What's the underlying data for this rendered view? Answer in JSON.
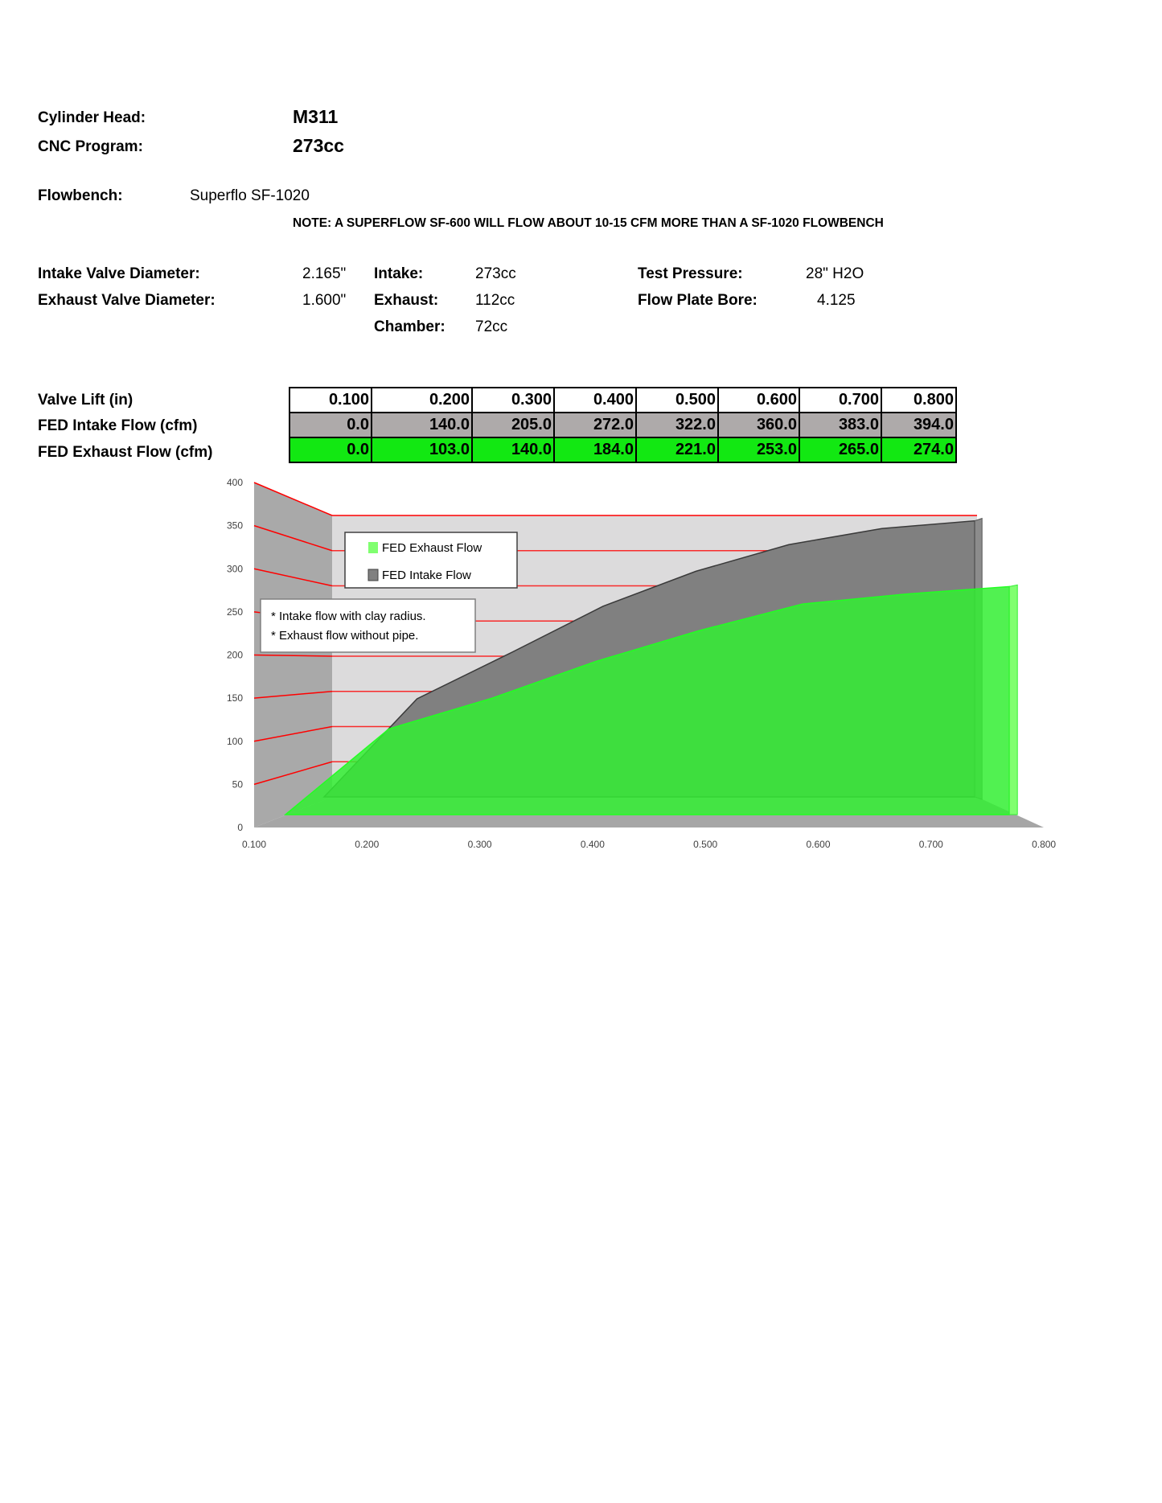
{
  "header": {
    "cylinder_head_label": "Cylinder Head:",
    "cylinder_head_value": "M311",
    "cnc_program_label": "CNC Program:",
    "cnc_program_value": "273cc",
    "flowbench_label": "Flowbench:",
    "flowbench_value": "Superflo SF-1020",
    "note": "NOTE: A SUPERFLOW SF-600 WILL FLOW ABOUT 10-15 CFM MORE THAN A SF-1020 FLOWBENCH"
  },
  "specs": {
    "intake_valve_label": "Intake Valve Diameter:",
    "intake_valve_value": "2.165\"",
    "exhaust_valve_label": "Exhaust Valve Diameter:",
    "exhaust_valve_value": "1.600\"",
    "intake_label": "Intake:",
    "intake_value": "273cc",
    "exhaust_label": "Exhaust:",
    "exhaust_value": "112cc",
    "chamber_label": "Chamber:",
    "chamber_value": "72cc",
    "test_pressure_label": "Test Pressure:",
    "test_pressure_value": "28\" H2O",
    "flow_plate_label": "Flow Plate Bore:",
    "flow_plate_value": "4.125"
  },
  "table": {
    "row_labels": [
      "Valve Lift (in)",
      "FED Intake Flow (cfm)",
      "FED Exhaust Flow (cfm)"
    ],
    "lift": [
      "0.100",
      "0.200",
      "0.300",
      "0.400",
      "0.500",
      "0.600",
      "0.700",
      "0.800"
    ],
    "intake": [
      "0.0",
      "140.0",
      "205.0",
      "272.0",
      "322.0",
      "360.0",
      "383.0",
      "394.0"
    ],
    "exhaust": [
      "0.0",
      "103.0",
      "140.0",
      "184.0",
      "221.0",
      "253.0",
      "265.0",
      "274.0"
    ]
  },
  "chart_data": {
    "type": "area",
    "three_d": true,
    "categories": [
      "0.100",
      "0.200",
      "0.300",
      "0.400",
      "0.500",
      "0.600",
      "0.700",
      "0.800"
    ],
    "y_ticks": [
      "0",
      "50",
      "100",
      "150",
      "200",
      "250",
      "300",
      "350",
      "400"
    ],
    "ylim": [
      0,
      400
    ],
    "grid": true,
    "legend_position": "top-left",
    "series": [
      {
        "name": "FED Exhaust Flow",
        "values": [
          0,
          103,
          140,
          184,
          221,
          253,
          265,
          274
        ],
        "color": "#33ee33"
      },
      {
        "name": "FED Intake Flow",
        "values": [
          0,
          140,
          205,
          272,
          322,
          360,
          383,
          394
        ],
        "color": "#808080"
      }
    ],
    "annotations": [
      "* Intake flow with clay radius.",
      "* Exhaust flow without pipe."
    ],
    "gridline_color": "#ff0000"
  }
}
